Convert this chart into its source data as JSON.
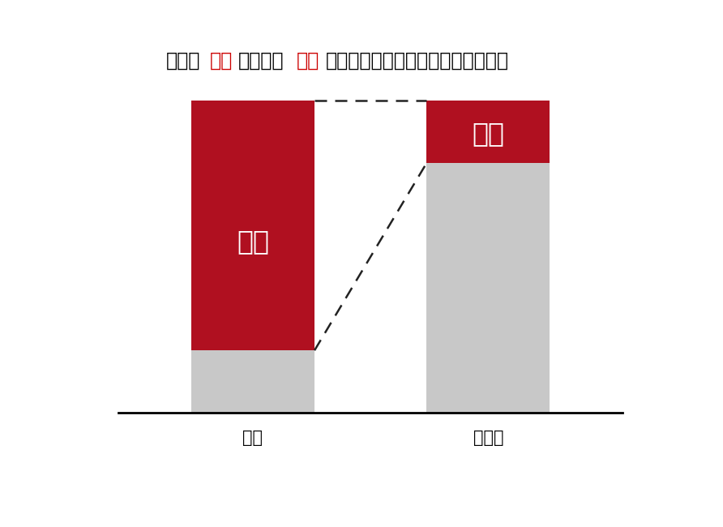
{
  "title_parts": [
    {
      "text": "売上の",
      "color": "#000000"
    },
    {
      "text": "８割",
      "color": "#cc0000"
    },
    {
      "text": "は、上位",
      "color": "#000000"
    },
    {
      "text": "２割",
      "color": "#cc0000"
    },
    {
      "text": "の常連客（リピーター）がもたらす",
      "color": "#000000"
    }
  ],
  "title_fontsize": 17,
  "bar_color_red": "#b01020",
  "bar_color_gray": "#c8c8c8",
  "background_color": "#ffffff",
  "dashed_line_color": "#222222",
  "text_color_white": "#ffffff",
  "label_8wari": "８割",
  "label_2wari": "２割",
  "label_fontsize": 24,
  "xlabel_left": "売上",
  "xlabel_right": "お客様",
  "xlabel_fontsize": 15
}
